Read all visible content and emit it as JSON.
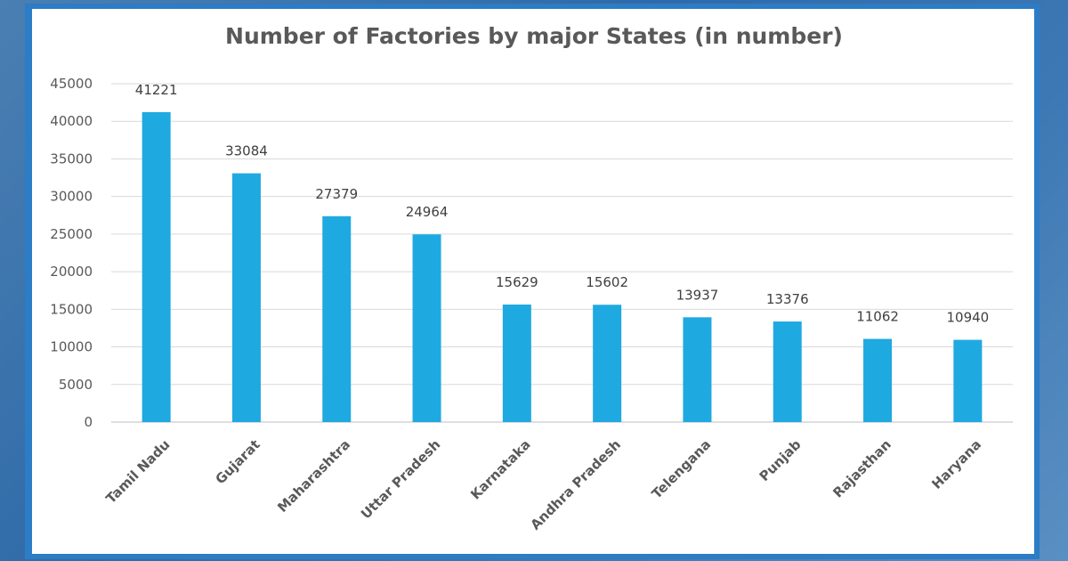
{
  "chart_data": {
    "type": "bar",
    "title": "Number of Factories by major States (in number)",
    "xlabel": "",
    "ylabel": "",
    "categories": [
      "Tamil Nadu",
      "Gujarat",
      "Maharashtra",
      "Uttar Pradesh",
      "Karnataka",
      "Andhra Pradesh",
      "Telengana",
      "Punjab",
      "Rajasthan",
      "Haryana"
    ],
    "values": [
      41221,
      33084,
      27379,
      24964,
      15629,
      15602,
      13937,
      13376,
      11062,
      10940
    ],
    "ylim": [
      0,
      45000
    ],
    "yticks": [
      0,
      5000,
      10000,
      15000,
      20000,
      25000,
      30000,
      35000,
      40000,
      45000
    ],
    "grid": true,
    "legend": "none",
    "bar_color": "#1fa9e1"
  }
}
